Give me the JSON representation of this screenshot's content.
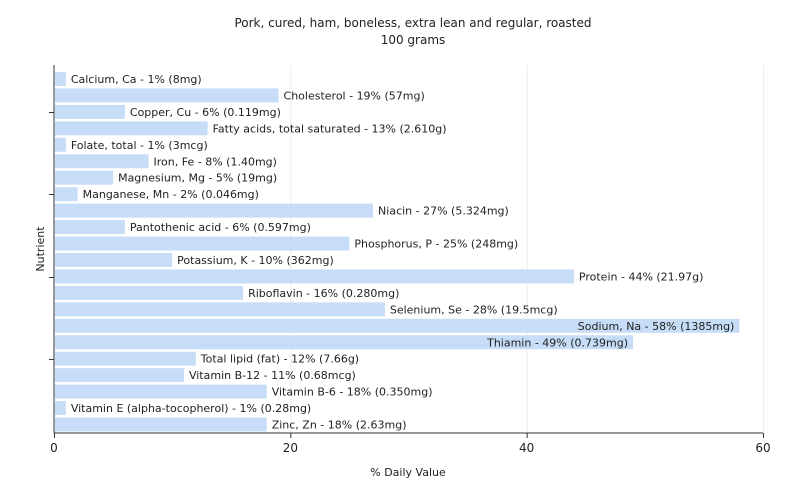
{
  "chart_data": {
    "type": "bar",
    "orientation": "horizontal",
    "title": "Pork, cured, ham, boneless, extra lean and regular, roasted",
    "subtitle": "100 grams",
    "xlabel": "% Daily Value",
    "ylabel": "Nutrient",
    "xlim": [
      0,
      60
    ],
    "xticks": [
      0,
      20,
      40,
      60
    ],
    "grid": true,
    "legend": "none",
    "bar_color": "#c6dcf7",
    "categories": [
      "Calcium, Ca - 1% (8mg)",
      "Cholesterol - 19% (57mg)",
      "Copper, Cu - 6% (0.119mg)",
      "Fatty acids, total saturated - 13% (2.610g)",
      "Folate, total - 1% (3mcg)",
      "Iron, Fe - 8% (1.40mg)",
      "Magnesium, Mg - 5% (19mg)",
      "Manganese, Mn - 2% (0.046mg)",
      "Niacin - 27% (5.324mg)",
      "Pantothenic acid - 6% (0.597mg)",
      "Phosphorus, P - 25% (248mg)",
      "Potassium, K - 10% (362mg)",
      "Protein - 44% (21.97g)",
      "Riboflavin - 16% (0.280mg)",
      "Selenium, Se - 28% (19.5mcg)",
      "Sodium, Na - 58% (1385mg)",
      "Thiamin - 49% (0.739mg)",
      "Total lipid (fat) - 12% (7.66g)",
      "Vitamin B-12 - 11% (0.68mcg)",
      "Vitamin B-6 - 18% (0.350mg)",
      "Vitamin E (alpha-tocopherol) - 1% (0.28mg)",
      "Zinc, Zn - 18% (2.63mg)"
    ],
    "values": [
      1,
      19,
      6,
      13,
      1,
      8,
      5,
      2,
      27,
      6,
      25,
      10,
      44,
      16,
      28,
      58,
      49,
      12,
      11,
      18,
      1,
      18
    ]
  }
}
